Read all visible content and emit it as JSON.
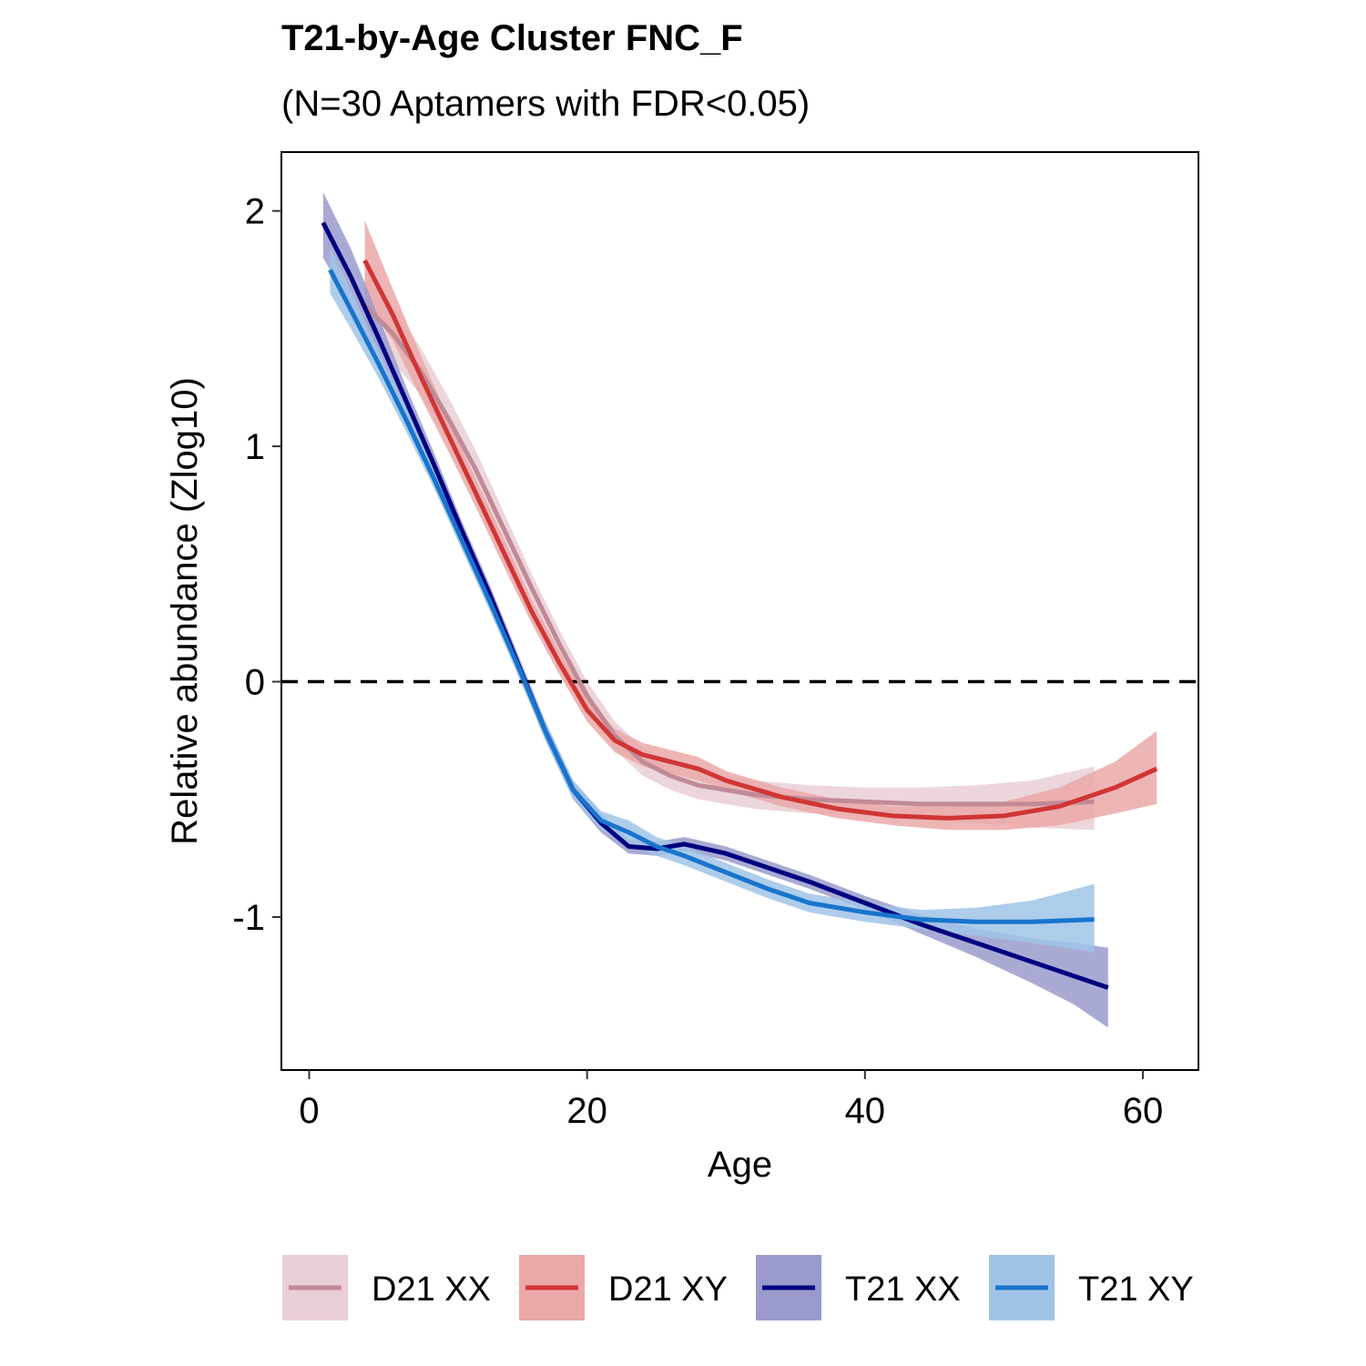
{
  "chart_data": {
    "type": "line",
    "title": "T21-by-Age Cluster FNC_F",
    "subtitle": "(N=30 Aptamers with FDR<0.05)",
    "xlabel": "Age",
    "ylabel": "Relative abundance (Zlog10)",
    "xlim": [
      -2,
      64
    ],
    "ylim": [
      -1.65,
      2.25
    ],
    "xticks": [
      0,
      20,
      40,
      60
    ],
    "yticks": [
      2,
      1,
      0,
      -1
    ],
    "reference_line": {
      "y": 0,
      "style": "dashed"
    },
    "grid": false,
    "legend_position": "bottom",
    "series": [
      {
        "name": "D21 XX",
        "color": "#c08a96",
        "band_color": "#e9cfd5",
        "x": [
          4,
          6,
          8,
          10,
          12,
          14,
          16,
          18,
          20,
          22,
          24,
          26,
          28,
          32,
          36,
          40,
          44,
          48,
          52,
          56.5
        ],
        "y": [
          1.6,
          1.48,
          1.32,
          1.12,
          0.9,
          0.65,
          0.4,
          0.16,
          -0.06,
          -0.23,
          -0.34,
          -0.4,
          -0.44,
          -0.48,
          -0.5,
          -0.51,
          -0.52,
          -0.52,
          -0.52,
          -0.51
        ],
        "lo": [
          1.45,
          1.36,
          1.22,
          1.03,
          0.82,
          0.58,
          0.34,
          0.1,
          -0.12,
          -0.29,
          -0.4,
          -0.46,
          -0.5,
          -0.54,
          -0.56,
          -0.57,
          -0.59,
          -0.6,
          -0.62,
          -0.63
        ],
        "hi": [
          1.75,
          1.6,
          1.42,
          1.21,
          0.98,
          0.72,
          0.46,
          0.22,
          0.0,
          -0.17,
          -0.28,
          -0.34,
          -0.38,
          -0.42,
          -0.44,
          -0.45,
          -0.45,
          -0.44,
          -0.42,
          -0.36
        ]
      },
      {
        "name": "D21 XY",
        "color": "#d03535",
        "band_color": "#eba8a8",
        "x": [
          4,
          6,
          8,
          10,
          12,
          14,
          16,
          18,
          20,
          22,
          24,
          26,
          28,
          30,
          34,
          38,
          42,
          46,
          50,
          54,
          58,
          61
        ],
        "y": [
          1.79,
          1.56,
          1.3,
          1.05,
          0.8,
          0.55,
          0.3,
          0.08,
          -0.12,
          -0.25,
          -0.31,
          -0.34,
          -0.37,
          -0.42,
          -0.49,
          -0.54,
          -0.57,
          -0.58,
          -0.57,
          -0.53,
          -0.45,
          -0.37
        ],
        "lo": [
          1.62,
          1.45,
          1.21,
          0.98,
          0.74,
          0.49,
          0.25,
          0.03,
          -0.17,
          -0.3,
          -0.36,
          -0.39,
          -0.42,
          -0.46,
          -0.53,
          -0.58,
          -0.61,
          -0.63,
          -0.63,
          -0.61,
          -0.56,
          -0.52
        ],
        "hi": [
          1.96,
          1.67,
          1.39,
          1.12,
          0.86,
          0.61,
          0.35,
          0.13,
          -0.07,
          -0.2,
          -0.26,
          -0.29,
          -0.32,
          -0.38,
          -0.45,
          -0.5,
          -0.53,
          -0.53,
          -0.51,
          -0.45,
          -0.34,
          -0.21
        ]
      },
      {
        "name": "T21 XX",
        "color": "#000080",
        "band_color": "#9a9bcc",
        "x": [
          1,
          3,
          5,
          7,
          9,
          11,
          13,
          15,
          17,
          19,
          21,
          23,
          25,
          27,
          30,
          33,
          36,
          40,
          44,
          48,
          52,
          55,
          57.5
        ],
        "y": [
          1.95,
          1.72,
          1.46,
          1.19,
          0.92,
          0.64,
          0.37,
          0.08,
          -0.21,
          -0.46,
          -0.6,
          -0.7,
          -0.71,
          -0.69,
          -0.73,
          -0.79,
          -0.85,
          -0.94,
          -1.03,
          -1.11,
          -1.19,
          -1.25,
          -1.3
        ],
        "lo": [
          1.8,
          1.6,
          1.38,
          1.13,
          0.87,
          0.6,
          0.33,
          0.04,
          -0.25,
          -0.5,
          -0.64,
          -0.73,
          -0.74,
          -0.72,
          -0.76,
          -0.82,
          -0.88,
          -0.97,
          -1.07,
          -1.17,
          -1.28,
          -1.37,
          -1.47
        ],
        "hi": [
          2.08,
          1.84,
          1.55,
          1.25,
          0.97,
          0.68,
          0.41,
          0.12,
          -0.17,
          -0.42,
          -0.56,
          -0.67,
          -0.68,
          -0.66,
          -0.7,
          -0.76,
          -0.82,
          -0.91,
          -0.99,
          -1.05,
          -1.09,
          -1.11,
          -1.13
        ]
      },
      {
        "name": "T21 XY",
        "color": "#1874cd",
        "band_color": "#a0c4e8",
        "x": [
          1.5,
          3,
          5,
          7,
          9,
          11,
          13,
          15,
          17,
          19,
          21,
          23,
          25,
          27,
          30,
          33,
          36,
          40,
          44,
          48,
          52,
          56.5
        ],
        "y": [
          1.75,
          1.58,
          1.35,
          1.11,
          0.86,
          0.6,
          0.34,
          0.07,
          -0.21,
          -0.46,
          -0.59,
          -0.64,
          -0.7,
          -0.74,
          -0.81,
          -0.88,
          -0.94,
          -0.98,
          -1.01,
          -1.02,
          -1.02,
          -1.01
        ],
        "lo": [
          1.65,
          1.5,
          1.29,
          1.06,
          0.82,
          0.56,
          0.3,
          0.03,
          -0.25,
          -0.5,
          -0.63,
          -0.69,
          -0.74,
          -0.78,
          -0.85,
          -0.92,
          -0.98,
          -1.02,
          -1.05,
          -1.08,
          -1.11,
          -1.15
        ],
        "hi": [
          1.85,
          1.66,
          1.41,
          1.16,
          0.9,
          0.64,
          0.38,
          0.11,
          -0.17,
          -0.42,
          -0.55,
          -0.59,
          -0.66,
          -0.7,
          -0.77,
          -0.84,
          -0.9,
          -0.94,
          -0.97,
          -0.96,
          -0.93,
          -0.86
        ]
      }
    ]
  }
}
